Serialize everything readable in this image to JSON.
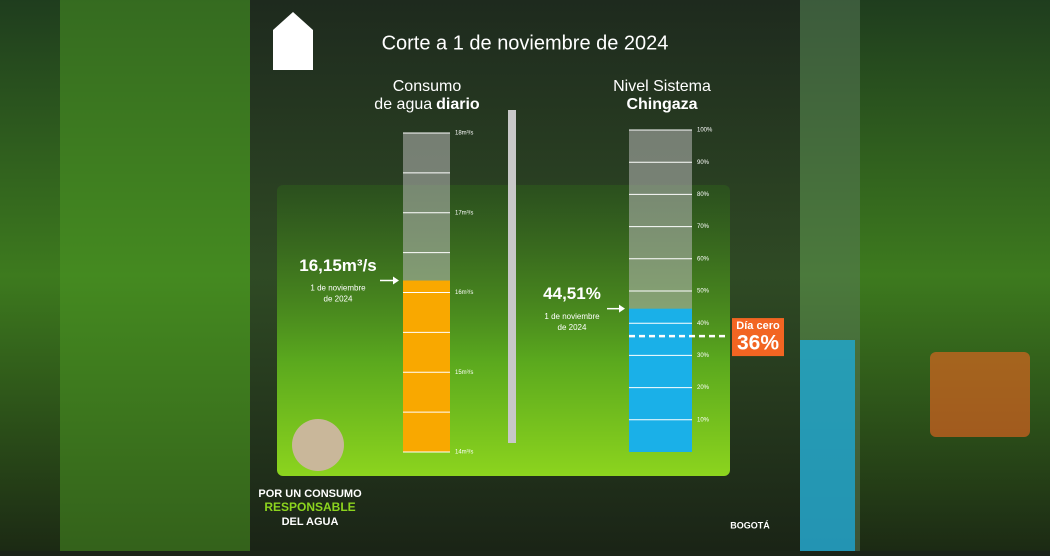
{
  "header": {
    "title": "Corte a 1 de noviembre de 2024"
  },
  "chart_data": [
    {
      "type": "gauge",
      "title": "Consumo",
      "subtitle": "de agua",
      "subtitle_bold": "diario",
      "values": [
        16.15
      ],
      "value_labels": [
        "16,15m³/s"
      ],
      "date": [
        "1 de noviembre",
        "de 2024"
      ],
      "color": "#f9a800",
      "ylim": [
        14,
        18
      ],
      "yticks": [
        {
          "value": 14,
          "label": "14m³/s"
        },
        {
          "value": 15,
          "label": "15m³/s"
        },
        {
          "value": 16,
          "label": "16m³/s"
        },
        {
          "value": 17,
          "label": "17m³/s"
        },
        {
          "value": 18,
          "label": "18m³/s"
        }
      ],
      "minor_ticks": [
        14.5,
        15.5,
        16.5,
        17.5
      ]
    },
    {
      "type": "gauge",
      "title": "Nivel Sistema",
      "subtitle_bold": "Chingaza",
      "values": [
        44.51
      ],
      "value_labels": [
        "44,51%"
      ],
      "date": [
        "1 de noviembre",
        "de 2024"
      ],
      "color": "#1ab0e8",
      "ylim": [
        0,
        100
      ],
      "yticks": [
        {
          "value": 10,
          "label": "10%"
        },
        {
          "value": 20,
          "label": "20%"
        },
        {
          "value": 30,
          "label": "30%"
        },
        {
          "value": 40,
          "label": "40%"
        },
        {
          "value": 50,
          "label": "50%"
        },
        {
          "value": 60,
          "label": "60%"
        },
        {
          "value": 70,
          "label": "70%"
        },
        {
          "value": 80,
          "label": "80%"
        },
        {
          "value": 90,
          "label": "90%"
        },
        {
          "value": 100,
          "label": "100%"
        }
      ],
      "threshold": {
        "value": 36,
        "label": "Día cero",
        "value_label": "36%",
        "color": "#f26522"
      }
    }
  ],
  "footer": {
    "slogan": [
      "POR UN CONSUMO",
      "RESPONSABLE",
      "DEL AGUA"
    ],
    "logo": "BOGOTÁ"
  }
}
